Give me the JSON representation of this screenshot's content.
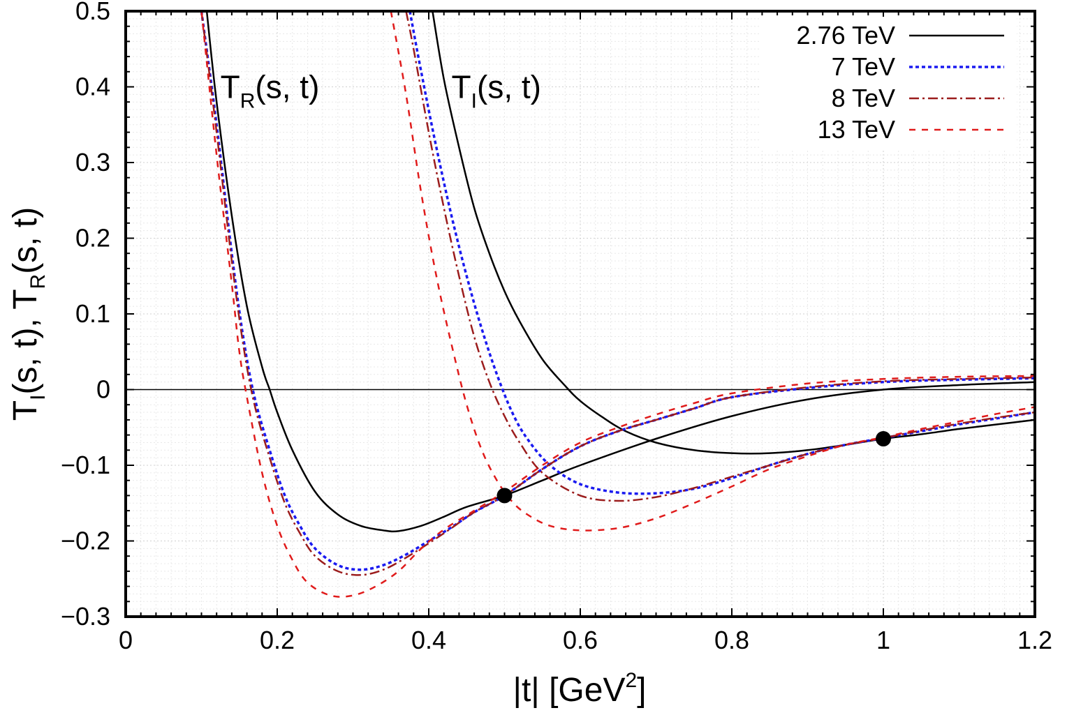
{
  "chart_data": {
    "type": "line",
    "xlabel": {
      "main": "|t| [GeV",
      "sup": "2",
      "close": "]"
    },
    "ylabel": {
      "a": "T",
      "a_sub": "I",
      "b": "(s, t), T",
      "b_sub": "R",
      "c": "(s, t)"
    },
    "xlim": [
      0,
      1.2
    ],
    "ylim": [
      -0.3,
      0.5
    ],
    "x_ticks": [
      0,
      0.2,
      0.4,
      0.6,
      0.8,
      1,
      1.2
    ],
    "x_tick_labels": [
      "0",
      "0.2",
      "0.4",
      "0.6",
      "0.8",
      "1",
      "1.2"
    ],
    "y_ticks": [
      -0.3,
      -0.2,
      -0.1,
      0,
      0.1,
      0.2,
      0.3,
      0.4,
      0.5
    ],
    "y_tick_labels": [
      "−0.3",
      "−0.2",
      "−0.1",
      "0",
      "0.1",
      "0.2",
      "0.3",
      "0.4",
      "0.5"
    ],
    "grid": true,
    "legend_position": "top-right",
    "annotations": [
      {
        "main": "T",
        "sub": "R",
        "rest": "(s, t)",
        "x": 0.125,
        "y": 0.4
      },
      {
        "main": "T",
        "sub": "I",
        "rest": "(s, t)",
        "x": 0.43,
        "y": 0.4
      }
    ],
    "markers": [
      {
        "x": 0.5,
        "y": -0.14
      },
      {
        "x": 1.0,
        "y": -0.065
      }
    ],
    "series": [
      {
        "name": "2.76 TeV",
        "color": "#000000",
        "style": "solid",
        "real": {
          "x": [
            0.107,
            0.12,
            0.14,
            0.16,
            0.18,
            0.19,
            0.2,
            0.22,
            0.25,
            0.28,
            0.31,
            0.34,
            0.36,
            0.39,
            0.42,
            0.45,
            0.5,
            0.55,
            0.6,
            0.7,
            0.8,
            0.9,
            1.0,
            1.1,
            1.2
          ],
          "y": [
            0.5,
            0.38,
            0.23,
            0.11,
            0.03,
            0.0,
            -0.03,
            -0.08,
            -0.135,
            -0.165,
            -0.18,
            -0.186,
            -0.187,
            -0.18,
            -0.168,
            -0.155,
            -0.14,
            -0.12,
            -0.1,
            -0.065,
            -0.035,
            -0.013,
            0.0,
            0.006,
            0.01
          ]
        },
        "imag": {
          "x": [
            0.405,
            0.42,
            0.44,
            0.46,
            0.48,
            0.5,
            0.52,
            0.55,
            0.58,
            0.6,
            0.63,
            0.66,
            0.7,
            0.75,
            0.8,
            0.85,
            0.9,
            0.95,
            1.0,
            1.05,
            1.1,
            1.15,
            1.2
          ],
          "y": [
            0.5,
            0.41,
            0.32,
            0.24,
            0.18,
            0.13,
            0.09,
            0.04,
            0.005,
            -0.015,
            -0.037,
            -0.055,
            -0.07,
            -0.08,
            -0.084,
            -0.084,
            -0.08,
            -0.073,
            -0.065,
            -0.059,
            -0.052,
            -0.046,
            -0.04
          ]
        }
      },
      {
        "name": "7 TeV",
        "color": "#1a1af0",
        "style": "dotted",
        "real": {
          "x": [
            0.1,
            0.12,
            0.14,
            0.155,
            0.17,
            0.19,
            0.21,
            0.23,
            0.25,
            0.28,
            0.31,
            0.34,
            0.37,
            0.4,
            0.43,
            0.46,
            0.5,
            0.55,
            0.6,
            0.65,
            0.7,
            0.75,
            0.8,
            0.9,
            1.0,
            1.1,
            1.2
          ],
          "y": [
            0.5,
            0.35,
            0.18,
            0.07,
            -0.01,
            -0.08,
            -0.14,
            -0.18,
            -0.21,
            -0.232,
            -0.238,
            -0.232,
            -0.218,
            -0.2,
            -0.182,
            -0.162,
            -0.14,
            -0.105,
            -0.075,
            -0.055,
            -0.04,
            -0.025,
            -0.01,
            0.002,
            0.01,
            0.013,
            0.015
          ]
        },
        "imag": {
          "x": [
            0.375,
            0.39,
            0.41,
            0.43,
            0.45,
            0.47,
            0.49,
            0.51,
            0.53,
            0.56,
            0.6,
            0.65,
            0.7,
            0.75,
            0.8,
            0.85,
            0.9,
            0.95,
            1.0,
            1.05,
            1.1,
            1.15,
            1.2
          ],
          "y": [
            0.5,
            0.42,
            0.32,
            0.23,
            0.15,
            0.08,
            0.02,
            -0.03,
            -0.065,
            -0.1,
            -0.125,
            -0.136,
            -0.137,
            -0.131,
            -0.117,
            -0.1,
            -0.085,
            -0.073,
            -0.064,
            -0.055,
            -0.046,
            -0.038,
            -0.03
          ]
        }
      },
      {
        "name": "8 TeV",
        "color": "#9b1c1c",
        "style": "dashdot",
        "real": {
          "x": [
            0.1,
            0.12,
            0.14,
            0.155,
            0.17,
            0.19,
            0.21,
            0.23,
            0.25,
            0.28,
            0.31,
            0.34,
            0.37,
            0.4,
            0.43,
            0.46,
            0.5,
            0.55,
            0.6,
            0.65,
            0.7,
            0.75,
            0.8,
            0.9,
            1.0,
            1.1,
            1.2
          ],
          "y": [
            0.5,
            0.34,
            0.17,
            0.06,
            -0.02,
            -0.09,
            -0.15,
            -0.19,
            -0.22,
            -0.24,
            -0.245,
            -0.238,
            -0.222,
            -0.203,
            -0.183,
            -0.162,
            -0.14,
            -0.105,
            -0.075,
            -0.055,
            -0.04,
            -0.025,
            -0.01,
            0.003,
            0.011,
            0.014,
            0.016
          ]
        },
        "imag": {
          "x": [
            0.37,
            0.38,
            0.4,
            0.42,
            0.44,
            0.46,
            0.48,
            0.5,
            0.52,
            0.55,
            0.6,
            0.65,
            0.7,
            0.75,
            0.8,
            0.85,
            0.9,
            0.95,
            1.0,
            1.05,
            1.1,
            1.15,
            1.2
          ],
          "y": [
            0.5,
            0.45,
            0.34,
            0.24,
            0.15,
            0.07,
            0.01,
            -0.035,
            -0.07,
            -0.11,
            -0.14,
            -0.147,
            -0.142,
            -0.13,
            -0.115,
            -0.1,
            -0.085,
            -0.073,
            -0.064,
            -0.054,
            -0.045,
            -0.037,
            -0.03
          ]
        }
      },
      {
        "name": "13 TeV",
        "color": "#e01b1b",
        "style": "dashed",
        "real": {
          "x": [
            0.1,
            0.12,
            0.14,
            0.15,
            0.16,
            0.18,
            0.2,
            0.22,
            0.24,
            0.27,
            0.3,
            0.33,
            0.36,
            0.39,
            0.42,
            0.46,
            0.5,
            0.55,
            0.6,
            0.65,
            0.7,
            0.75,
            0.8,
            0.9,
            1.0,
            1.1,
            1.2
          ],
          "y": [
            0.5,
            0.31,
            0.14,
            0.05,
            -0.01,
            -0.11,
            -0.18,
            -0.225,
            -0.255,
            -0.272,
            -0.272,
            -0.26,
            -0.24,
            -0.21,
            -0.185,
            -0.16,
            -0.135,
            -0.1,
            -0.07,
            -0.05,
            -0.033,
            -0.018,
            -0.005,
            0.008,
            0.014,
            0.017,
            0.018
          ]
        },
        "imag": {
          "x": [
            0.35,
            0.37,
            0.39,
            0.41,
            0.43,
            0.45,
            0.47,
            0.49,
            0.51,
            0.53,
            0.56,
            0.6,
            0.65,
            0.7,
            0.75,
            0.8,
            0.85,
            0.9,
            0.95,
            1.0,
            1.05,
            1.1,
            1.15,
            1.2
          ],
          "y": [
            0.5,
            0.39,
            0.26,
            0.15,
            0.06,
            -0.02,
            -0.08,
            -0.12,
            -0.148,
            -0.165,
            -0.18,
            -0.186,
            -0.183,
            -0.17,
            -0.15,
            -0.128,
            -0.105,
            -0.088,
            -0.073,
            -0.063,
            -0.052,
            -0.042,
            -0.032,
            -0.023
          ]
        }
      }
    ]
  }
}
